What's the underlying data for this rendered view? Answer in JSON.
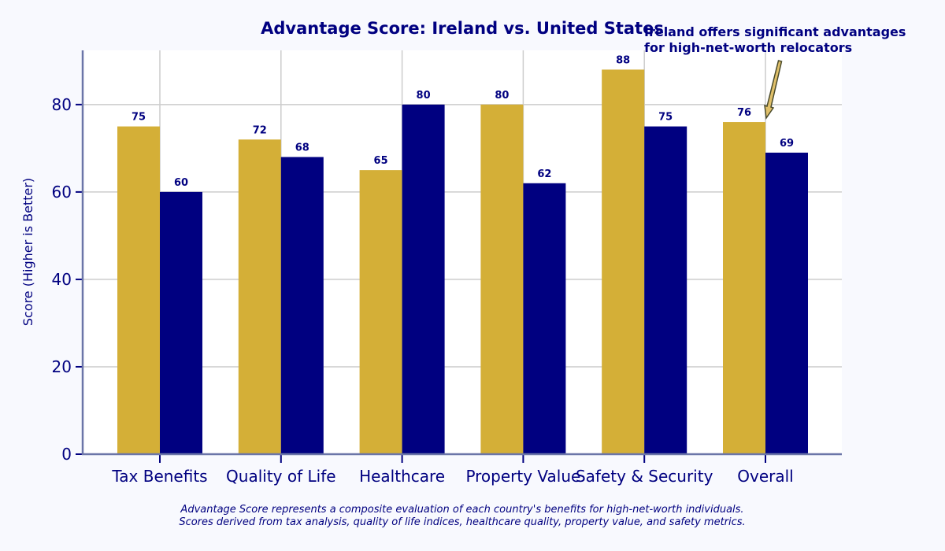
{
  "chart_data": {
    "type": "bar",
    "title": "Advantage Score: Ireland vs. United States",
    "xlabel": "",
    "ylabel": "Score (Higher is Better)",
    "ylim": [
      0,
      92.4
    ],
    "yticks": [
      0,
      20,
      40,
      60,
      80
    ],
    "grid": true,
    "legend": "none",
    "categories": [
      "Tax Benefits",
      "Quality of Life",
      "Healthcare",
      "Property Value",
      "Safety & Security",
      "Overall"
    ],
    "series": [
      {
        "color": "#d4af37",
        "values": [
          75,
          72,
          65,
          80,
          88,
          76
        ]
      },
      {
        "color": "#000080",
        "values": [
          60,
          68,
          80,
          62,
          75,
          69
        ]
      }
    ],
    "annotation": {
      "text_lines": [
        "Ireland offers significant advantages",
        "for high-net-worth relocators"
      ],
      "points_to": {
        "category": "Overall",
        "value": 76
      }
    },
    "footnote": [
      "Advantage Score represents a composite evaluation of each country's benefits for high-net-worth individuals.",
      "Scores derived from tax analysis, quality of life indices, healthcare quality, property value, and safety metrics."
    ]
  }
}
